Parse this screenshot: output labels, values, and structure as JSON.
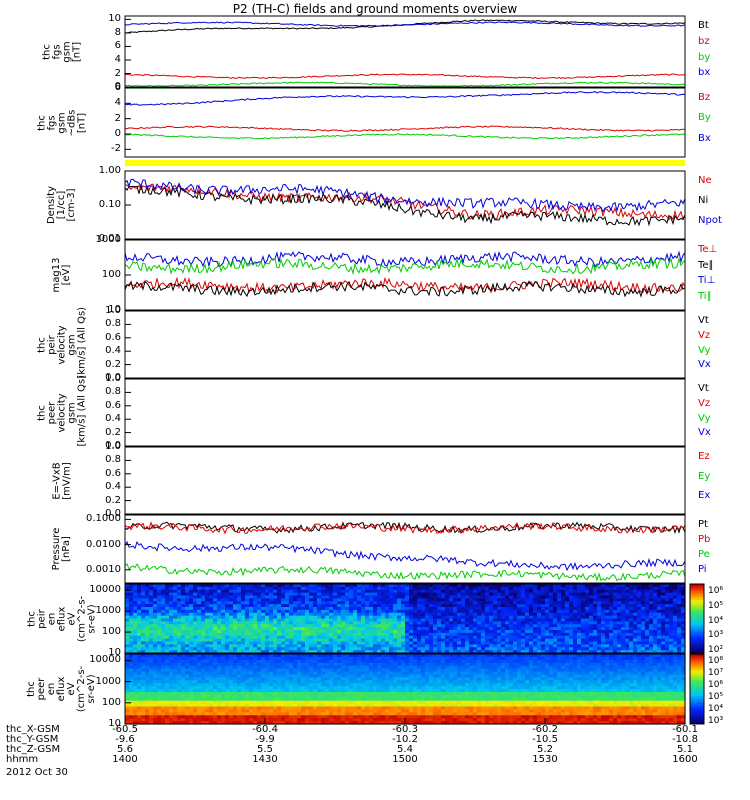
{
  "title": "P2 (TH-C) fields and ground moments overview",
  "date": "2012 Oct 30",
  "chart_data": [
    {
      "type": "line",
      "id": "fgs_gsm",
      "ylabel": [
        "thc",
        "fgs",
        "gsm",
        "[nT]"
      ],
      "yticks": [
        "10",
        "8",
        "6",
        "4",
        "2",
        "0"
      ],
      "ylim": [
        0,
        10.5
      ],
      "series": [
        {
          "name": "Bt",
          "color": "#000000",
          "level_start": 8.0,
          "level": 9.6
        },
        {
          "name": "bz",
          "color": "#dd0000",
          "level": 1.6
        },
        {
          "name": "by",
          "color": "#00cc00",
          "level": 0.4
        },
        {
          "name": "bx",
          "color": "#0000dd",
          "level": 9.3
        }
      ]
    },
    {
      "type": "line",
      "id": "fgs_gsm_dsc",
      "ylabel": [
        "thc",
        "fgs",
        "gsm",
        "~dBs",
        "[nT]"
      ],
      "yticks": [
        "6",
        "4",
        "2",
        "0",
        "-2"
      ],
      "ylim": [
        -3,
        6
      ],
      "series": [
        {
          "name": "Bz",
          "color": "#dd0000",
          "level": 0.7
        },
        {
          "name": "By",
          "color": "#00cc00",
          "level": -0.3
        },
        {
          "name": "Bx",
          "color": "#0000dd",
          "level_start": 4.0,
          "level": 5.2
        }
      ]
    },
    {
      "type": "line",
      "id": "density",
      "yscale": "log",
      "ylabel": [
        "Density",
        "[1/cc]",
        "[cm-3]"
      ],
      "yticks": [
        "1.00",
        "0.10",
        "0.01"
      ],
      "ylim": [
        0.01,
        1.0
      ],
      "series": [
        {
          "name": "Ne",
          "color": "#dd0000",
          "level_start": 0.3,
          "level": 0.06
        },
        {
          "name": "Ni",
          "color": "#000000",
          "level_start": 0.25,
          "level": 0.04
        },
        {
          "name": "Npot",
          "color": "#0000dd",
          "level_start": 0.4,
          "level": 0.1
        }
      ]
    },
    {
      "type": "line",
      "id": "temperature",
      "yscale": "log",
      "ylabel": [
        "mag13",
        "[eV]"
      ],
      "yticks": [
        "1000",
        "100",
        "10"
      ],
      "ylim": [
        10,
        1000
      ],
      "series": [
        {
          "name": "Te⊥",
          "color": "#dd0000",
          "level": 50
        },
        {
          "name": "Te∥",
          "color": "#000000",
          "level": 40
        },
        {
          "name": "Ti⊥",
          "color": "#0000dd",
          "level": 280
        },
        {
          "name": "Ti∥",
          "color": "#00cc00",
          "level": 180
        }
      ]
    },
    {
      "type": "line",
      "id": "peir_velocity",
      "ylabel": [
        "thc",
        "peir",
        "velocity",
        "gsm",
        "[km/s] (All Qs)"
      ],
      "yticks": [
        "1.0",
        "0.8",
        "0.6",
        "0.4",
        "0.2",
        "0.0"
      ],
      "ylim": [
        0,
        1
      ],
      "series": [
        {
          "name": "Vt",
          "color": "#000000"
        },
        {
          "name": "Vz",
          "color": "#dd0000"
        },
        {
          "name": "Vy",
          "color": "#00cc00"
        },
        {
          "name": "Vx",
          "color": "#0000dd"
        }
      ]
    },
    {
      "type": "line",
      "id": "peer_velocity",
      "ylabel": [
        "thc",
        "peer",
        "velocity",
        "gsm",
        "[km/s] (All Qs)"
      ],
      "yticks": [
        "1.0",
        "0.8",
        "0.6",
        "0.4",
        "0.2",
        "0.0"
      ],
      "ylim": [
        0,
        1
      ],
      "series": [
        {
          "name": "Vt",
          "color": "#000000"
        },
        {
          "name": "Vz",
          "color": "#dd0000"
        },
        {
          "name": "Vy",
          "color": "#00cc00"
        },
        {
          "name": "Vx",
          "color": "#0000dd"
        }
      ]
    },
    {
      "type": "line",
      "id": "efield",
      "ylabel": [
        "E=-VxB",
        "[mV/m]"
      ],
      "yticks": [
        "1.0",
        "0.8",
        "0.6",
        "0.4",
        "0.2",
        "0.0"
      ],
      "ylim": [
        0,
        1
      ],
      "series": [
        {
          "name": "Ez",
          "color": "#dd0000"
        },
        {
          "name": "Ey",
          "color": "#00cc00"
        },
        {
          "name": "Ex",
          "color": "#0000dd"
        }
      ]
    },
    {
      "type": "line",
      "id": "pressure",
      "yscale": "log",
      "ylabel": [
        "Pressure",
        "[nPa]"
      ],
      "yticks": [
        "0.1000",
        "0.0100",
        "0.0010"
      ],
      "ylim": [
        0.0003,
        0.15
      ],
      "series": [
        {
          "name": "Pt",
          "color": "#000000",
          "level": 0.048
        },
        {
          "name": "Pb",
          "color": "#dd0000",
          "level": 0.046
        },
        {
          "name": "Pe",
          "color": "#00cc00",
          "level_start": 0.0011,
          "level": 0.0006
        },
        {
          "name": "Pi",
          "color": "#0000dd",
          "level_start": 0.01,
          "level": 0.0016
        }
      ]
    },
    {
      "type": "heatmap",
      "id": "peir_eflux",
      "yscale": "log",
      "ylabel": [
        "thc",
        "peir",
        "en",
        "eflux",
        "eV",
        "(cm^2-s-",
        "sr-eV)"
      ],
      "yticks": [
        "10000",
        "1000",
        "100",
        "10"
      ],
      "ylim": [
        10,
        20000
      ],
      "colorbar": {
        "labels": [
          "10⁶",
          "10⁵",
          "10⁴",
          "10³",
          "10²"
        ]
      }
    },
    {
      "type": "heatmap",
      "id": "peer_eflux",
      "yscale": "log",
      "ylabel": [
        "thc",
        "peer",
        "en",
        "eflux",
        "eV",
        "(cm^2-s-",
        "sr-eV)"
      ],
      "yticks": [
        "10000",
        "1000",
        "100",
        "10"
      ],
      "ylim": [
        10,
        20000
      ],
      "colorbar": {
        "labels": [
          "10⁸",
          "10⁷",
          "10⁶",
          "10⁵",
          "10⁴",
          "10³"
        ]
      }
    }
  ],
  "x_axis": {
    "rows": [
      {
        "label": "thc_X-GSM",
        "values": [
          "-60.5",
          "-60.4",
          "-60.3",
          "-60.2",
          "-60.1"
        ]
      },
      {
        "label": "thc_Y-GSM",
        "values": [
          "-9.6",
          "-9.9",
          "-10.2",
          "-10.5",
          "-10.8"
        ]
      },
      {
        "label": "thc_Z-GSM",
        "values": [
          "5.6",
          "5.5",
          "5.4",
          "5.2",
          "5.1"
        ]
      },
      {
        "label": "hhmm",
        "values": [
          "1400",
          "1430",
          "1500",
          "1530",
          "1600"
        ]
      }
    ]
  }
}
